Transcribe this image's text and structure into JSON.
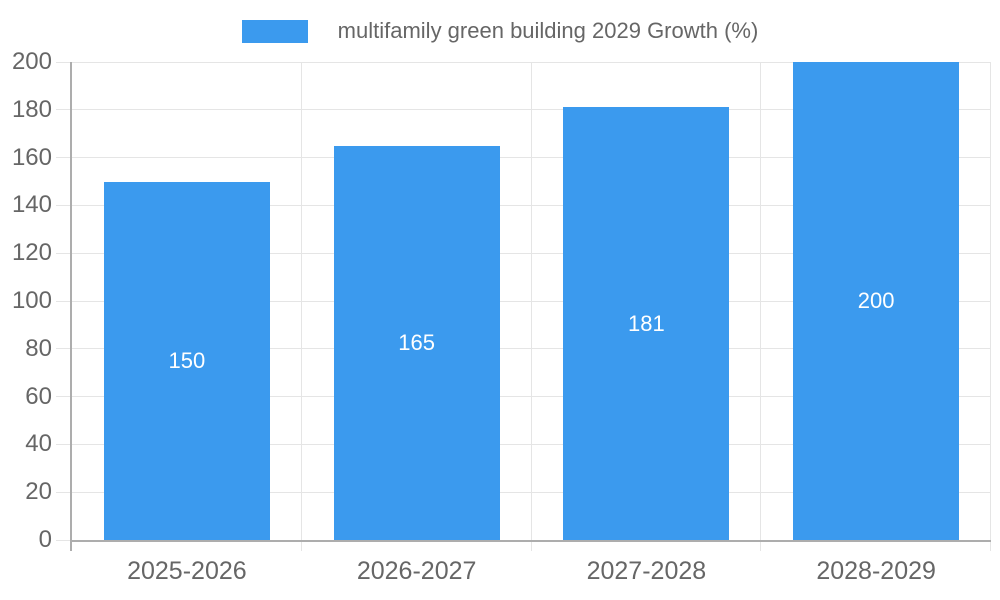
{
  "chart_data": {
    "type": "bar",
    "title": "",
    "xlabel": "",
    "ylabel": "",
    "legend_label": "multifamily green building 2029 Growth (%)",
    "legend_position": "top",
    "categories": [
      "2025-2026",
      "2026-2027",
      "2027-2028",
      "2028-2029"
    ],
    "values": [
      150,
      165,
      181,
      200
    ],
    "bar_value_labels": [
      "150",
      "165",
      "181",
      "200"
    ],
    "ylim": [
      0,
      200
    ],
    "yticks": [
      0,
      20,
      40,
      60,
      80,
      100,
      120,
      140,
      160,
      180,
      200
    ],
    "grid": true,
    "colors": {
      "bar": "#3B9AEE",
      "bar_label_text": "#FFFFFF",
      "tick_text": "#666666",
      "legend_text": "#666666",
      "gridline": "#E5E5E5",
      "axis_line": "#ADADAD",
      "background": "#FFFFFF"
    }
  }
}
